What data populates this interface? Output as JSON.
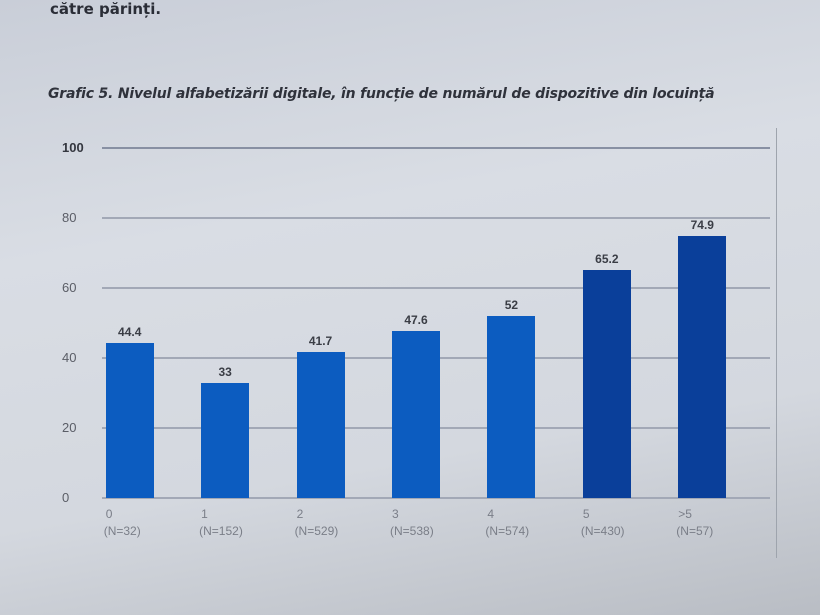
{
  "document": {
    "top_text": "către părinți.",
    "chart_title": "Grafic 5. Nivelul alfabetizării digitale, în funcție de numărul de dispozitive din locuință"
  },
  "colors": {
    "bar": "#0c5cc0",
    "bar_dark": "#0a3f9a",
    "gridline": "#a2a8b6"
  },
  "chart_data": {
    "type": "bar",
    "title": "Grafic 5. Nivelul alfabetizării digitale, în funcție de numărul de dispozitive din locuință",
    "xlabel": "",
    "ylabel": "",
    "ylim": [
      0,
      100
    ],
    "yticks": [
      0,
      20,
      40,
      60,
      80,
      100
    ],
    "grid": true,
    "legend": null,
    "categories": [
      "0",
      "1",
      "2",
      "3",
      "4",
      "5",
      ">5"
    ],
    "category_counts": [
      "(N=32)",
      "(N=152)",
      "(N=529)",
      "(N=538)",
      "(N=574)",
      "(N=430)",
      "(N=57)"
    ],
    "values": [
      44.4,
      33,
      41.7,
      47.6,
      52,
      65.2,
      74.9
    ],
    "value_labels": [
      "44.4",
      "33",
      "41.7",
      "47.6",
      "52",
      "65.2",
      "74.9"
    ]
  }
}
